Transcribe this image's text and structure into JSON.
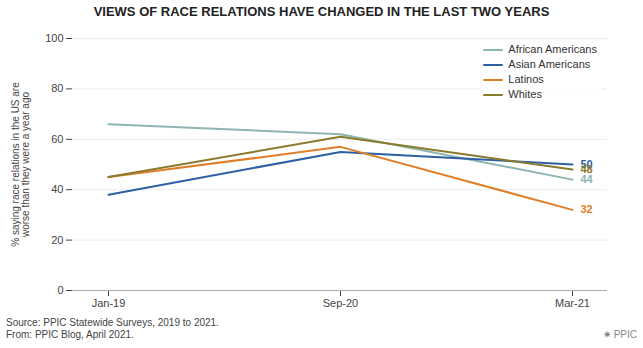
{
  "chart_data": {
    "type": "line",
    "title": "VIEWS OF RACE RELATIONS HAVE CHANGED IN THE LAST TWO YEARS",
    "ylabel": "% saying race relations in the US are\nworse than they were a year ago",
    "categories": [
      "Jan-19",
      "Sep-20",
      "Mar-21"
    ],
    "series": [
      {
        "name": "African Americans",
        "color": "#8db5b2",
        "values": [
          66,
          62,
          44
        ]
      },
      {
        "name": "Asian Americans",
        "color": "#2e5fa3",
        "values": [
          38,
          55,
          50
        ]
      },
      {
        "name": "Latinos",
        "color": "#e07f2a",
        "values": [
          45,
          57,
          32
        ]
      },
      {
        "name": "Whites",
        "color": "#8b7a2e",
        "values": [
          45,
          61,
          48
        ]
      }
    ],
    "annotations": [
      {
        "text": "50",
        "x": "Mar-21",
        "y": 50,
        "color": "#2e5fa3"
      },
      {
        "text": "48",
        "x": "Mar-21",
        "y": 48,
        "color": "#8b7a2e"
      },
      {
        "text": "44",
        "x": "Mar-21",
        "y": 44,
        "color": "#8db5b2"
      },
      {
        "text": "32",
        "x": "Mar-21",
        "y": 32,
        "color": "#e07f2a"
      }
    ],
    "ylim": [
      0,
      100
    ],
    "yticks": [
      0,
      20,
      40,
      60,
      80,
      100
    ],
    "grid": true,
    "legend": "upper right",
    "caption": "Source: PPIC Statewide Surveys, 2019 to 2021.\nFrom: PPIC Blog, April 2021.",
    "credit": "✷ PPIC"
  }
}
